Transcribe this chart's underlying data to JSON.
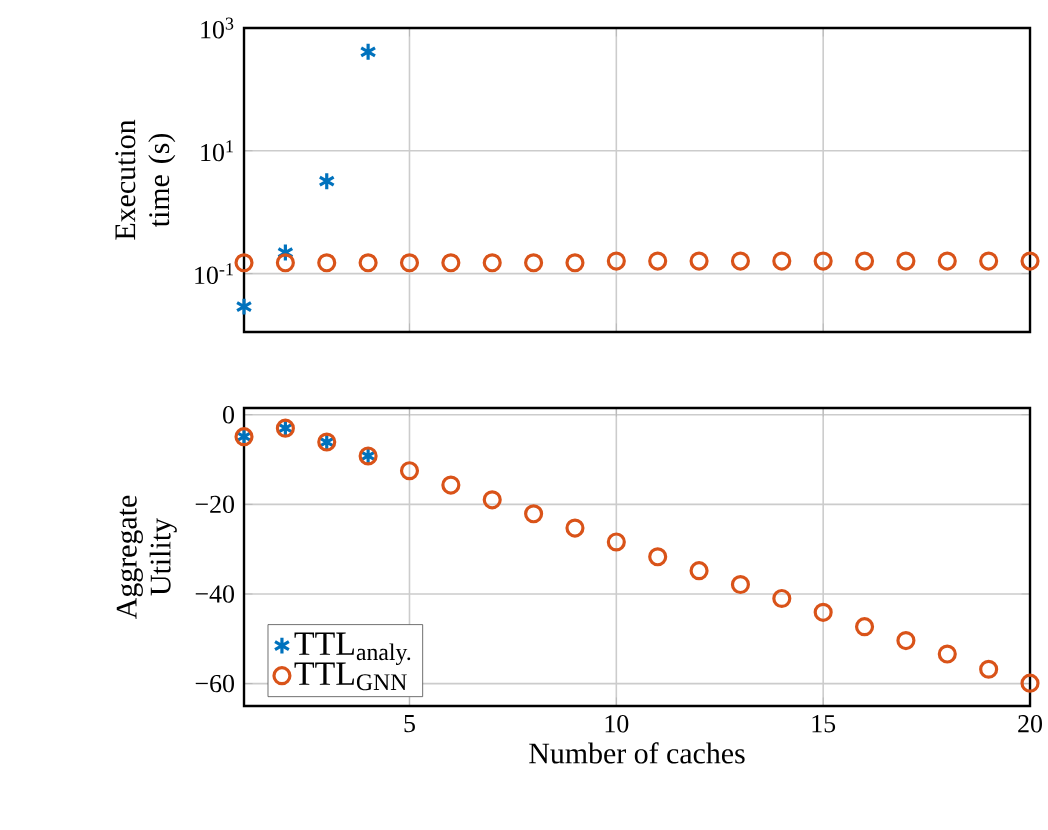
{
  "chart_data": [
    {
      "type": "scatter",
      "ylabel": "Execution time (s)",
      "log": "y",
      "grid": true,
      "legend": false,
      "tick_labels": "y",
      "x": [
        1,
        2,
        3,
        4,
        5,
        6,
        7,
        8,
        9,
        10,
        11,
        12,
        13,
        14,
        15,
        16,
        17,
        18,
        19,
        20
      ],
      "xlim": [
        1,
        20
      ],
      "xticks": [
        5,
        10,
        15,
        20
      ],
      "ylim": [
        0.0112,
        1000
      ],
      "yticks": [
        {
          "value": 0.1,
          "label": "10$^{-1}$"
        },
        {
          "value": 10,
          "label": "10$^{1}$"
        },
        {
          "value": 1000,
          "label": "10$^{3}$"
        }
      ],
      "series": [
        {
          "color": "#0072bd",
          "marker": "cross",
          "x": [
            1,
            2,
            3,
            4
          ],
          "values": [
            0.029,
            0.22,
            3.2,
            410
          ]
        },
        {
          "color": "#d95319",
          "marker": "circle",
          "values": [
            0.15,
            0.15,
            0.15,
            0.15,
            0.15,
            0.15,
            0.15,
            0.15,
            0.15,
            0.16,
            0.16,
            0.16,
            0.16,
            0.16,
            0.16,
            0.16,
            0.16,
            0.16,
            0.16,
            0.16
          ]
        }
      ]
    },
    {
      "type": "scatter",
      "xlabel": "Number of caches",
      "ylabel": "Aggregate Utility",
      "grid": true,
      "legend": "bottom left",
      "x": [
        1,
        2,
        3,
        4,
        5,
        6,
        7,
        8,
        9,
        10,
        11,
        12,
        13,
        14,
        15,
        16,
        17,
        18,
        19,
        20
      ],
      "xlim": [
        1,
        20
      ],
      "xticks": [
        5,
        10,
        15,
        20
      ],
      "ylim": [
        -65,
        1.5
      ],
      "yticks": [
        {
          "value": -60,
          "label": "−60"
        },
        {
          "value": -40,
          "label": "−40"
        },
        {
          "value": -20,
          "label": "−20"
        },
        0
      ],
      "series": [
        {
          "name": "TTL$_{analy.}$",
          "color": "#0072bd",
          "marker": "cross",
          "x": [
            1,
            2,
            3,
            4
          ],
          "values": [
            -4.9,
            -3,
            -6.1,
            -9.2
          ]
        },
        {
          "name": "TTL$_{GNN}$",
          "color": "#d95319",
          "marker": "circle",
          "values": [
            -4.9,
            -3,
            -6.1,
            -9.2,
            -12.5,
            -15.7,
            -19,
            -22.1,
            -25.3,
            -28.4,
            -31.7,
            -34.8,
            -37.9,
            -41,
            -44.1,
            -47.3,
            -50.4,
            -53.4,
            -56.8,
            -59.9
          ]
        }
      ]
    }
  ]
}
